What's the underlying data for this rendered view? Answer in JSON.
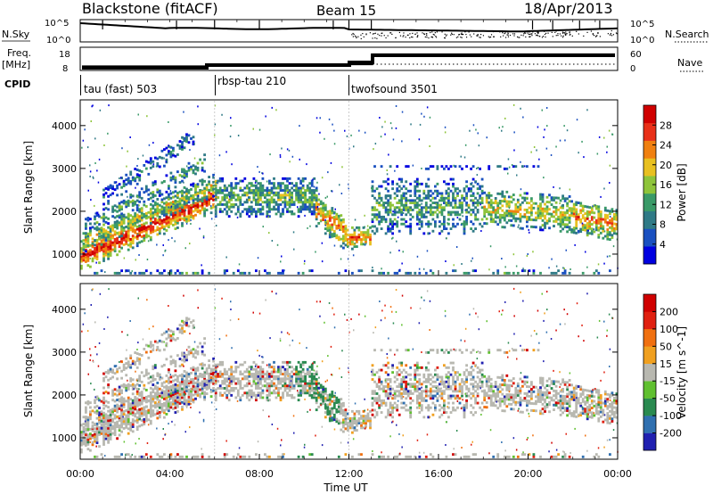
{
  "header": {
    "title": "Blackstone (fitACF)",
    "beam": "Beam 15",
    "date": "18/Apr/2013"
  },
  "summary_panels": {
    "nsky_label": "N.Sky",
    "nsky_ticks": [
      "10^5",
      "10^0"
    ],
    "nsearch_label": "N.Search",
    "nsearch_ticks": [
      "10^5",
      "10^0"
    ],
    "freq_label": "Freq.",
    "freq_unit": "[MHz]",
    "freq_ticks": [
      "18",
      "8"
    ],
    "nave_label": "Nave",
    "nave_ticks": [
      "60",
      "0"
    ],
    "cpid_label": "CPID",
    "cpid_segments": [
      {
        "label": "tau (fast) 503",
        "start": 0,
        "end": 6
      },
      {
        "label": "rbsp-tau 210",
        "start": 6,
        "end": 12
      },
      {
        "label": "twofsound 3501",
        "start": 12,
        "end": 24
      }
    ]
  },
  "chart_data": [
    {
      "type": "heatmap",
      "name": "power",
      "ylabel": "Slant Range [km]",
      "xlim": [
        0,
        24
      ],
      "ylim": [
        500,
        4600
      ],
      "yticks": [
        1000,
        2000,
        3000,
        4000
      ],
      "colorbar_label": "Power [dB]",
      "colorbar_ticks": [
        "28",
        "24",
        "20",
        "16",
        "12",
        "8",
        "4"
      ],
      "colorbar_colors": [
        "#0000e0",
        "#1a50c0",
        "#2f7a86",
        "#3a9a68",
        "#8ec43a",
        "#e8c020",
        "#f08010",
        "#e83018",
        "#d00000"
      ]
    },
    {
      "type": "heatmap",
      "name": "velocity",
      "ylabel": "Slant Range [km]",
      "xlabel": "Time UT",
      "xlim": [
        0,
        24
      ],
      "ylim": [
        500,
        4600
      ],
      "yticks": [
        1000,
        2000,
        3000,
        4000
      ],
      "xticks": [
        "00:00",
        "04:00",
        "08:00",
        "12:00",
        "16:00",
        "20:00",
        "00:00"
      ],
      "colorbar_label": "Velocity [m s^-1]",
      "colorbar_ticks": [
        "200",
        "100",
        "50",
        "15",
        "-15",
        "-50",
        "-100",
        "-200"
      ],
      "colorbar_colors": [
        "#2020b0",
        "#3070b0",
        "#2a8a50",
        "#60c030",
        "#b8b8b0",
        "#f0a020",
        "#f07010",
        "#e02010",
        "#d00000"
      ]
    }
  ]
}
